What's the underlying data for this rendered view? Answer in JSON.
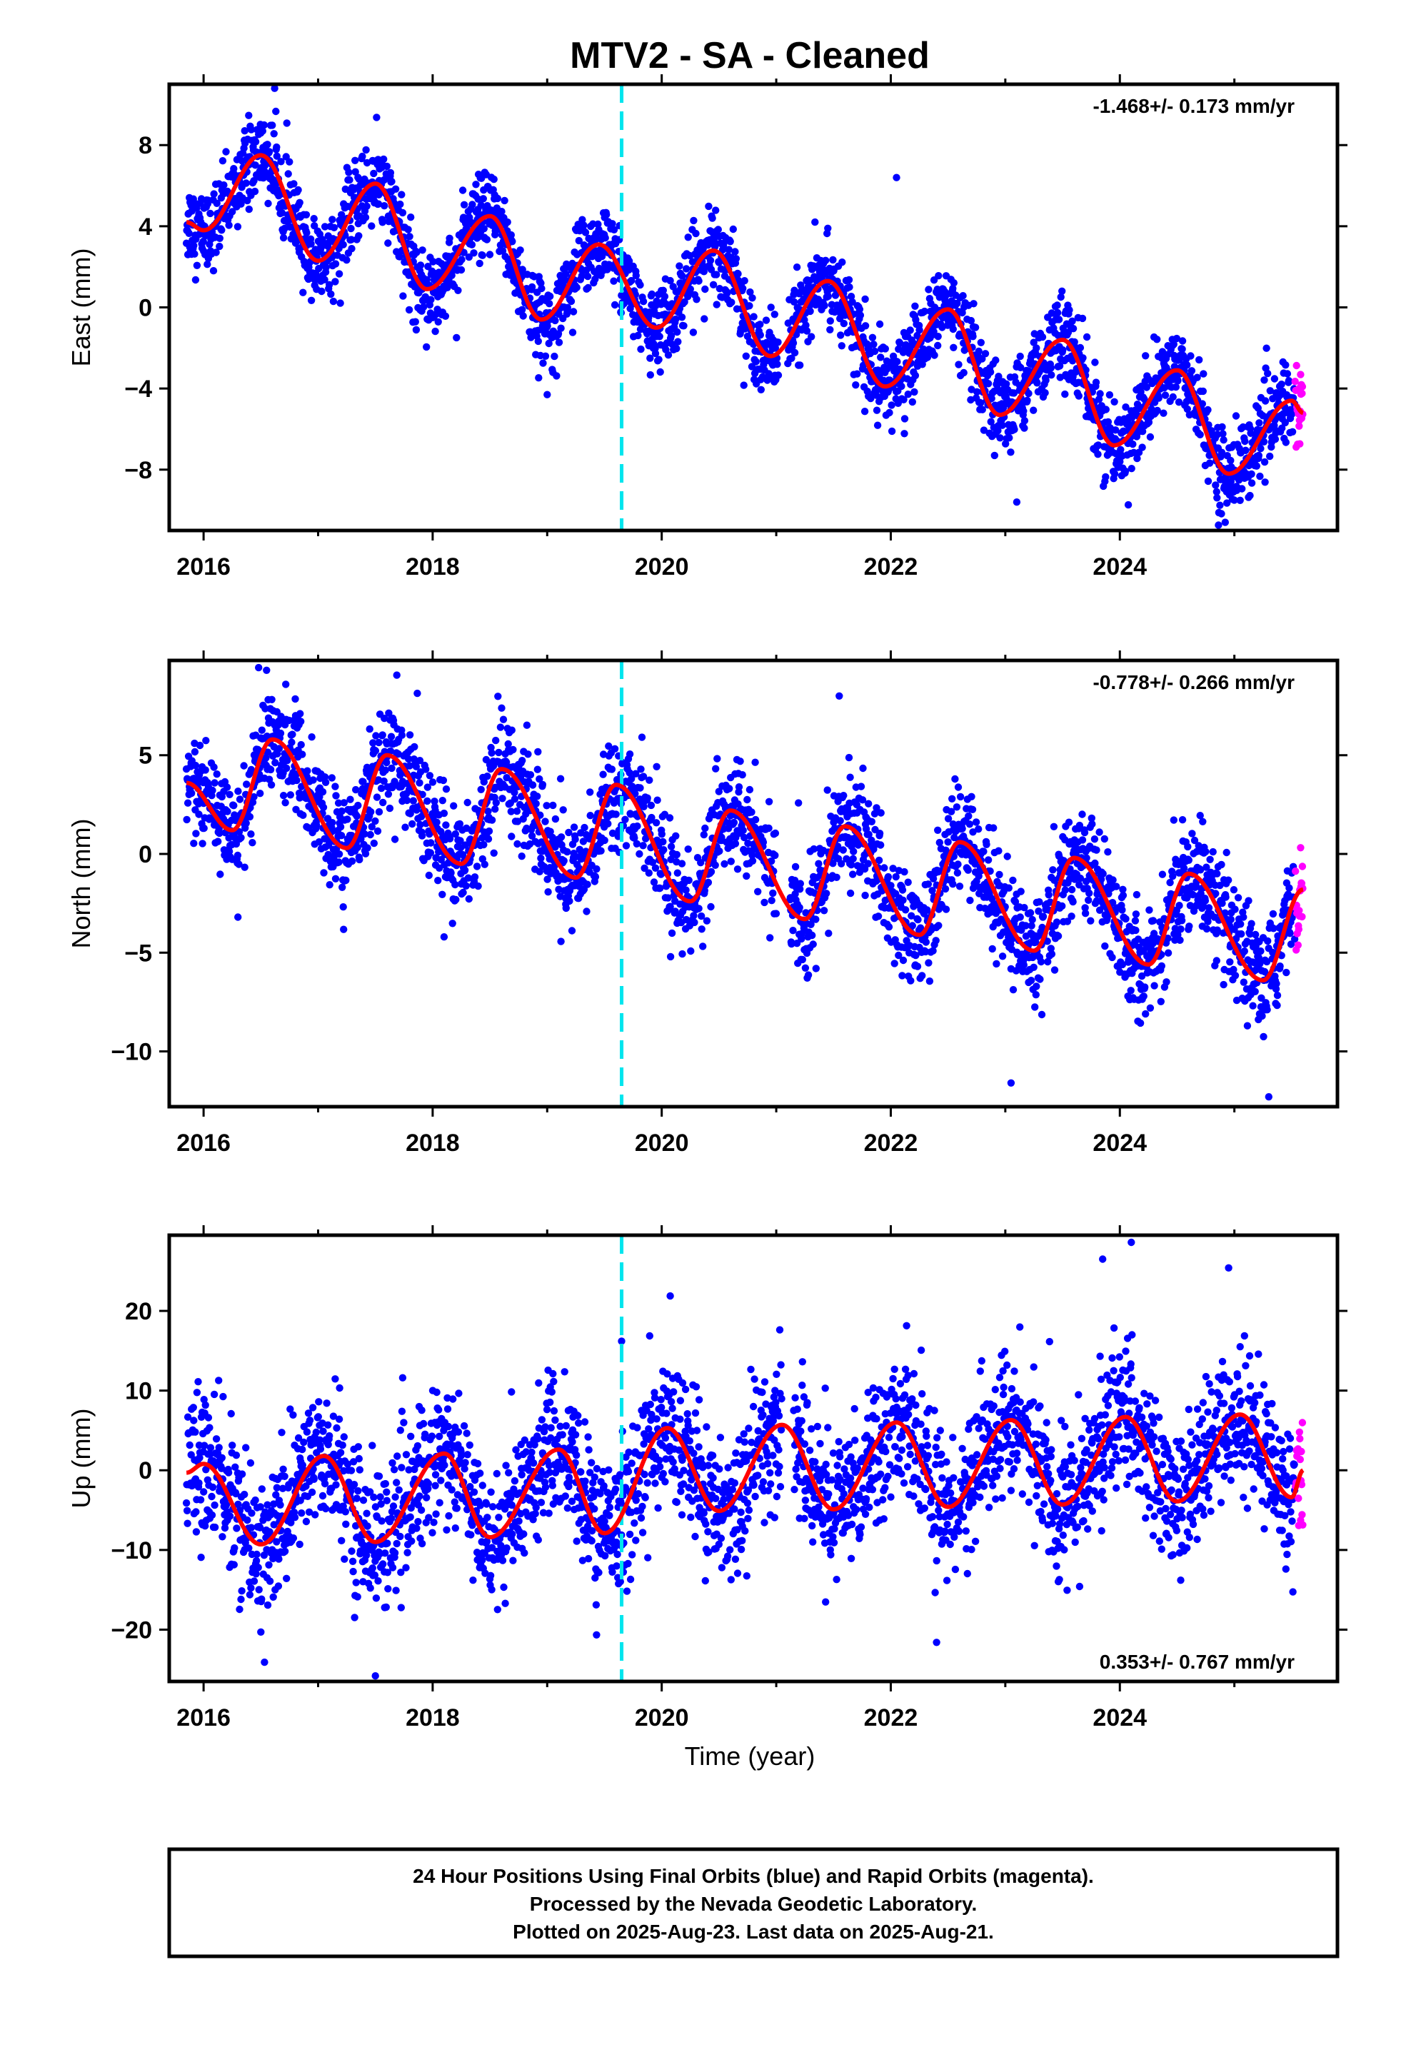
{
  "figure": {
    "title": "MTV2  - SA - Cleaned",
    "xlabel": "Time (year)",
    "colors": {
      "final": "#0000ff",
      "rapid": "#ff00ff",
      "model": "#ff0000",
      "event": "#00e5ee",
      "frame": "#000000"
    },
    "footer": [
      "24 Hour Positions Using Final Orbits (blue) and Rapid Orbits (magenta).",
      "Processed by the Nevada Geodetic Laboratory.",
      "Plotted on 2025-Aug-23. Last data on 2025-Aug-21."
    ]
  },
  "chart_data": [
    {
      "type": "scatter",
      "component": "East",
      "ylabel": "East (mm)",
      "rate": "-1.468+/- 0.173 mm/yr",
      "xlim": [
        2015.7,
        2025.9
      ],
      "ylim": [
        -11.0,
        11.0
      ],
      "xticks": [
        2016,
        2018,
        2020,
        2022,
        2024
      ],
      "yticks": [
        -8,
        -4,
        0,
        4,
        8
      ],
      "event_line_x": 2019.65,
      "data_start": 2015.85,
      "data_end": 2025.6,
      "rapid_start": 2025.45,
      "gaps": [
        [
          2021.02,
          2021.1
        ]
      ],
      "trend": {
        "intercept_at_2016": 5.8,
        "slope_mm_per_yr": -1.468
      },
      "seasonal": {
        "amplitude": 2.5,
        "peak_phase_year": 0.52,
        "semiannual_amplitude": 0.3
      },
      "scatter_sd": 1.0,
      "series": [
        {
          "name": "Final Orbits (blue)"
        },
        {
          "name": "Rapid Orbits (magenta)"
        }
      ],
      "model_points": [
        [
          2015.85,
          4.2
        ],
        [
          2016.0,
          3.8
        ],
        [
          2016.5,
          7.5
        ],
        [
          2017.0,
          2.3
        ],
        [
          2017.5,
          6.1
        ],
        [
          2017.95,
          0.9
        ],
        [
          2018.5,
          4.5
        ],
        [
          2018.95,
          -0.6
        ],
        [
          2019.45,
          3.1
        ],
        [
          2019.95,
          -1.0
        ],
        [
          2020.45,
          2.8
        ],
        [
          2020.95,
          -2.4
        ],
        [
          2021.45,
          1.3
        ],
        [
          2021.95,
          -3.9
        ],
        [
          2022.5,
          -0.1
        ],
        [
          2022.95,
          -5.3
        ],
        [
          2023.5,
          -1.6
        ],
        [
          2023.95,
          -6.8
        ],
        [
          2024.5,
          -3.1
        ],
        [
          2024.95,
          -8.2
        ],
        [
          2025.5,
          -4.6
        ],
        [
          2025.6,
          -5.2
        ]
      ],
      "outliers": [
        [
          2016.62,
          10.8
        ],
        [
          2022.05,
          6.4
        ],
        [
          2023.1,
          -9.6
        ],
        [
          2024.92,
          -10.6
        ],
        [
          2019.0,
          -4.3
        ]
      ]
    },
    {
      "type": "scatter",
      "component": "North",
      "ylabel": "North (mm)",
      "rate": "-0.778+/- 0.266 mm/yr",
      "xlim": [
        2015.7,
        2025.9
      ],
      "ylim": [
        -12.8,
        9.8
      ],
      "xticks": [
        2016,
        2018,
        2020,
        2022,
        2024
      ],
      "yticks": [
        -10,
        -5,
        0,
        5
      ],
      "event_line_x": 2019.65,
      "data_start": 2015.85,
      "data_end": 2025.6,
      "rapid_start": 2025.45,
      "gaps": [
        [
          2021.0,
          2021.12
        ]
      ],
      "trend": {
        "intercept_at_2016": 3.2,
        "slope_mm_per_yr": -0.778
      },
      "seasonal": {
        "amplitude": 2.4,
        "peak_phase_year": 0.6,
        "semiannual_amplitude": 0.4
      },
      "scatter_sd": 1.35,
      "series": [
        {
          "name": "Final Orbits (blue)"
        },
        {
          "name": "Rapid Orbits (magenta)"
        }
      ],
      "model_points": [
        [
          2015.85,
          3.6
        ],
        [
          2016.25,
          1.2
        ],
        [
          2016.6,
          5.8
        ],
        [
          2017.25,
          0.3
        ],
        [
          2017.6,
          5.0
        ],
        [
          2018.25,
          -0.5
        ],
        [
          2018.6,
          4.3
        ],
        [
          2019.25,
          -1.2
        ],
        [
          2019.6,
          3.5
        ],
        [
          2020.25,
          -2.4
        ],
        [
          2020.6,
          2.2
        ],
        [
          2021.25,
          -3.3
        ],
        [
          2021.6,
          1.4
        ],
        [
          2022.25,
          -4.1
        ],
        [
          2022.6,
          0.6
        ],
        [
          2023.25,
          -4.9
        ],
        [
          2023.6,
          -0.2
        ],
        [
          2024.25,
          -5.6
        ],
        [
          2024.6,
          -1.0
        ],
        [
          2025.25,
          -6.4
        ],
        [
          2025.6,
          -1.8
        ]
      ],
      "outliers": [
        [
          2016.55,
          9.3
        ],
        [
          2021.55,
          8.0
        ],
        [
          2023.05,
          -11.6
        ],
        [
          2025.3,
          -12.3
        ],
        [
          2016.3,
          -3.2
        ],
        [
          2018.1,
          -4.2
        ]
      ]
    },
    {
      "type": "scatter",
      "component": "Up",
      "ylabel": "Up (mm)",
      "rate": "0.353+/- 0.767 mm/yr",
      "xlim": [
        2015.7,
        2025.9
      ],
      "ylim": [
        -26.5,
        29.5
      ],
      "xticks": [
        2016,
        2018,
        2020,
        2022,
        2024
      ],
      "yticks": [
        -20,
        -10,
        0,
        10,
        20
      ],
      "event_line_x": 2019.65,
      "data_start": 2015.85,
      "data_end": 2025.6,
      "rapid_start": 2025.45,
      "gaps": [
        [
          2021.05,
          2021.15
        ]
      ],
      "trend": {
        "intercept_at_2016": -2.0,
        "slope_mm_per_yr": 0.353
      },
      "seasonal": {
        "amplitude": 6.0,
        "peak_phase_year": 0.05,
        "semiannual_amplitude": 0.8
      },
      "scatter_sd": 4.4,
      "series": [
        {
          "name": "Final Orbits (blue)"
        },
        {
          "name": "Rapid Orbits (magenta)"
        }
      ],
      "model_points": [
        [
          2015.85,
          -0.3
        ],
        [
          2016.0,
          0.8
        ],
        [
          2016.5,
          -9.3
        ],
        [
          2017.05,
          1.8
        ],
        [
          2017.5,
          -9.0
        ],
        [
          2018.1,
          2.1
        ],
        [
          2018.5,
          -8.4
        ],
        [
          2019.1,
          2.6
        ],
        [
          2019.5,
          -7.9
        ],
        [
          2020.05,
          5.3
        ],
        [
          2020.5,
          -5.1
        ],
        [
          2021.05,
          5.7
        ],
        [
          2021.5,
          -4.9
        ],
        [
          2022.05,
          6.0
        ],
        [
          2022.5,
          -4.6
        ],
        [
          2023.05,
          6.3
        ],
        [
          2023.5,
          -4.3
        ],
        [
          2024.05,
          6.7
        ],
        [
          2024.5,
          -3.9
        ],
        [
          2025.05,
          7.0
        ],
        [
          2025.5,
          -3.4
        ],
        [
          2025.6,
          0.0
        ]
      ],
      "outliers": [
        [
          2017.5,
          -25.8
        ],
        [
          2024.1,
          28.6
        ],
        [
          2023.85,
          26.5
        ],
        [
          2024.95,
          25.4
        ],
        [
          2019.65,
          16.2
        ],
        [
          2022.4,
          -21.6
        ],
        [
          2016.5,
          -20.3
        ]
      ]
    }
  ]
}
